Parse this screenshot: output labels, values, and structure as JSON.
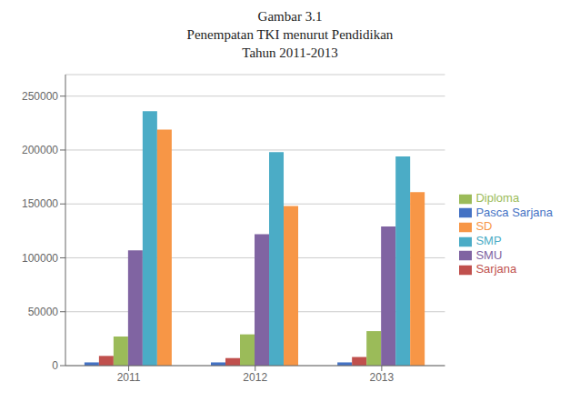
{
  "chart_data": {
    "type": "bar",
    "title": [
      "Gambar 3.1",
      "Penempatan TKI menurut Pendidikan",
      "Tahun 2011-2013"
    ],
    "categories": [
      "2011",
      "2012",
      "2013"
    ],
    "series": [
      {
        "name": "Pasca Sarjana",
        "color": "#4472c4",
        "values": [
          3000,
          3000,
          3000
        ]
      },
      {
        "name": "Sarjana",
        "color": "#c0504d",
        "values": [
          9000,
          7000,
          8000
        ]
      },
      {
        "name": "Diploma",
        "color": "#9bbb59",
        "values": [
          27000,
          29000,
          32000
        ]
      },
      {
        "name": "SMU",
        "color": "#8064a2",
        "values": [
          107000,
          122000,
          129000
        ]
      },
      {
        "name": "SMP",
        "color": "#4bacc6",
        "values": [
          236000,
          198000,
          194000
        ]
      },
      {
        "name": "SD",
        "color": "#f79646",
        "values": [
          219000,
          148000,
          161000
        ]
      }
    ],
    "ylim": [
      0,
      270000
    ],
    "yticks": [
      0,
      50000,
      100000,
      150000,
      200000,
      250000
    ],
    "grid": true,
    "legend": "right"
  }
}
